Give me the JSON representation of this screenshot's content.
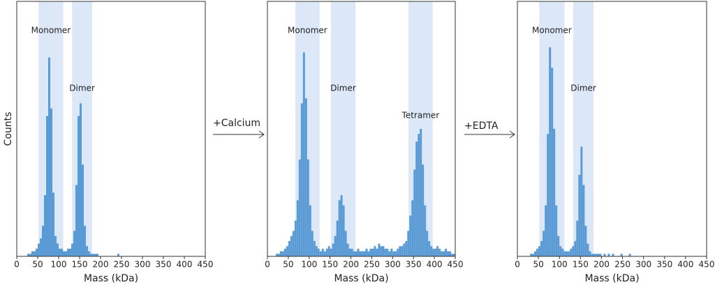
{
  "chart_data": [
    {
      "type": "histogram",
      "xlabel": "Mass (kDa)",
      "ylabel": "Counts",
      "bins": [
        25,
        30,
        35,
        40,
        45,
        50,
        55,
        60,
        65,
        70,
        75,
        80,
        85,
        90,
        95,
        100,
        105,
        110,
        115,
        120,
        125,
        130,
        135,
        140,
        145,
        150,
        155,
        160,
        165,
        170,
        175,
        180,
        185,
        190,
        195,
        200,
        205,
        210,
        215,
        220,
        225,
        230,
        235,
        240,
        245,
        250
      ],
      "values": [
        1,
        1,
        2,
        2,
        3,
        5,
        7,
        12,
        24,
        55,
        78,
        58,
        25,
        8,
        5,
        3,
        3,
        2,
        2,
        3,
        3,
        5,
        10,
        28,
        55,
        60,
        36,
        12,
        4,
        2,
        1,
        1,
        1,
        1,
        0,
        0,
        0,
        0,
        0,
        0,
        0,
        0,
        0,
        1,
        0
      ],
      "color": "#5b9bd5",
      "region_color": "#dce8f7",
      "regions": [
        {
          "label": "Monomer",
          "x": [
            52,
            111
          ]
        },
        {
          "label": "Dimer",
          "x": [
            132,
            180
          ]
        }
      ],
      "xlim": [
        0,
        450
      ],
      "ylim": [
        0,
        100
      ],
      "xticks": [
        0,
        50,
        100,
        150,
        200,
        250,
        300,
        350,
        400,
        450
      ]
    },
    {
      "type": "histogram",
      "xlabel": "Mass (kDa)",
      "bins": [
        20,
        25,
        30,
        35,
        40,
        45,
        50,
        55,
        60,
        65,
        70,
        75,
        80,
        85,
        90,
        95,
        100,
        105,
        110,
        115,
        120,
        125,
        130,
        135,
        140,
        145,
        150,
        155,
        160,
        165,
        170,
        175,
        180,
        185,
        190,
        195,
        200,
        205,
        210,
        215,
        220,
        225,
        230,
        235,
        240,
        245,
        250,
        255,
        260,
        265,
        270,
        275,
        280,
        285,
        290,
        295,
        300,
        305,
        310,
        315,
        320,
        325,
        330,
        335,
        340,
        345,
        350,
        355,
        360,
        365,
        370,
        375,
        380,
        385,
        390,
        395,
        400,
        405,
        410,
        415,
        420,
        425,
        430,
        435,
        440,
        445,
        450
      ],
      "values": [
        1,
        1,
        2,
        2,
        3,
        4,
        6,
        8,
        10,
        14,
        22,
        38,
        60,
        80,
        62,
        38,
        20,
        10,
        6,
        4,
        3,
        2,
        3,
        2,
        3,
        4,
        3,
        5,
        8,
        14,
        22,
        24,
        20,
        10,
        5,
        3,
        3,
        2,
        2,
        3,
        2,
        2,
        2,
        3,
        2,
        3,
        3,
        4,
        3,
        5,
        4,
        4,
        3,
        3,
        2,
        3,
        2,
        2,
        3,
        4,
        4,
        5,
        6,
        10,
        16,
        22,
        34,
        45,
        48,
        50,
        36,
        20,
        10,
        6,
        4,
        3,
        3,
        4,
        3,
        2,
        2,
        3,
        2,
        2,
        1,
        1
      ],
      "color": "#5b9bd5",
      "region_color": "#dce8f7",
      "regions": [
        {
          "label": "Monomer",
          "x": [
            67,
            125
          ]
        },
        {
          "label": "Dimer",
          "x": [
            152,
            211
          ]
        },
        {
          "label": "Tetramer",
          "x": [
            338,
            396
          ]
        }
      ],
      "xlim": [
        0,
        450
      ],
      "ylim": [
        0,
        100
      ],
      "xticks": [
        0,
        50,
        100,
        150,
        200,
        250,
        300,
        350,
        400,
        450
      ]
    },
    {
      "type": "histogram",
      "xlabel": "Mass (kDa)",
      "bins": [
        25,
        30,
        35,
        40,
        45,
        50,
        55,
        60,
        65,
        70,
        75,
        80,
        85,
        90,
        95,
        100,
        105,
        110,
        115,
        120,
        125,
        130,
        135,
        140,
        145,
        150,
        155,
        160,
        165,
        170,
        175,
        180,
        185,
        190,
        195,
        200,
        205,
        210,
        215,
        220,
        225,
        230,
        235,
        240,
        245,
        250,
        255,
        260,
        265,
        270,
        275,
        280,
        285,
        290,
        295,
        300
      ],
      "values": [
        0,
        1,
        1,
        2,
        3,
        4,
        6,
        10,
        20,
        48,
        82,
        74,
        50,
        20,
        8,
        4,
        3,
        2,
        2,
        2,
        3,
        4,
        6,
        14,
        32,
        43,
        28,
        12,
        5,
        2,
        1,
        1,
        1,
        1,
        1,
        0,
        1,
        0,
        1,
        0,
        1,
        0,
        0,
        0,
        1,
        0,
        0,
        0,
        1,
        0,
        0,
        0,
        0,
        0,
        0
      ],
      "color": "#5b9bd5",
      "region_color": "#dce8f7",
      "regions": [
        {
          "label": "Monomer",
          "x": [
            52,
            112
          ]
        },
        {
          "label": "Dimer",
          "x": [
            133,
            181
          ]
        }
      ],
      "xlim": [
        0,
        450
      ],
      "ylim": [
        0,
        100
      ],
      "xticks": [
        0,
        50,
        100,
        150,
        200,
        250,
        300,
        350,
        400,
        450
      ]
    }
  ],
  "arrows": [
    {
      "label": "+Calcium"
    },
    {
      "label": "+EDTA"
    }
  ]
}
